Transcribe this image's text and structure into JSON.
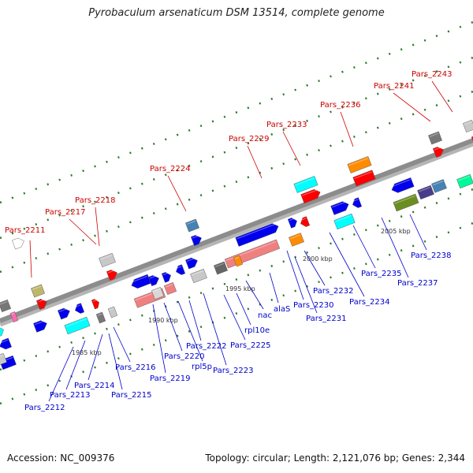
{
  "title": "Pyrobaculum arsenaticum DSM 13514, complete genome",
  "accession": "Accession: NC_009376",
  "summary": "Topology: circular; Length: 2,121,076 bp; Genes: 2,344",
  "colors": {
    "red_label": "#cc0000",
    "blue_label": "#0000cc",
    "backbone": "#8c8c8c",
    "grid_dot": "#2a7a2a",
    "leader": "#555555"
  },
  "kbp_marks": [
    {
      "text": "1985 kbp"
    },
    {
      "text": "1990 kbp"
    },
    {
      "text": "1995 kbp"
    },
    {
      "text": "2000 kbp"
    },
    {
      "text": "2005 kbp"
    }
  ],
  "top_labels": [
    {
      "text": "Pars_2211"
    },
    {
      "text": "Pars_2217"
    },
    {
      "text": "Pars_2218"
    },
    {
      "text": "Pars_2224"
    },
    {
      "text": "Pars_2229"
    },
    {
      "text": "Pars_2233"
    },
    {
      "text": "Pars_2236"
    },
    {
      "text": "Pars_2241"
    },
    {
      "text": "Pars_2243"
    }
  ],
  "bottom_labels": [
    {
      "text": "Pars_2212"
    },
    {
      "text": "Pars_2213"
    },
    {
      "text": "Pars_2214"
    },
    {
      "text": "Pars_2215"
    },
    {
      "text": "Pars_2216"
    },
    {
      "text": "Pars_2219"
    },
    {
      "text": "Pars_2220"
    },
    {
      "text": "rpl5p"
    },
    {
      "text": "Pars_2222"
    },
    {
      "text": "Pars_2223"
    },
    {
      "text": "Pars_2225"
    },
    {
      "text": "rpl10e"
    },
    {
      "text": "nac"
    },
    {
      "text": "alaS"
    },
    {
      "text": "Pars_2230"
    },
    {
      "text": "Pars_2231"
    },
    {
      "text": "Pars_2232"
    },
    {
      "text": "Pars_2234"
    },
    {
      "text": "Pars_2235"
    },
    {
      "text": "Pars_2237"
    },
    {
      "text": "Pars_2238"
    }
  ],
  "genes": [
    {
      "color": "#ffffff"
    },
    {
      "color": "#ff0000"
    },
    {
      "color": "#ff0000"
    },
    {
      "color": "#c8c8c8"
    },
    {
      "color": "#0000ee"
    },
    {
      "color": "#00ffff"
    },
    {
      "color": "#0000ee"
    },
    {
      "color": "#0000ee"
    },
    {
      "color": "#777777"
    },
    {
      "color": "#ff0000"
    },
    {
      "color": "#c8c8c8"
    },
    {
      "color": "#0000ee"
    },
    {
      "color": "#0000ee"
    },
    {
      "color": "#f08080"
    },
    {
      "color": "#d8d8d8"
    },
    {
      "color": "#f08080"
    },
    {
      "color": "#0000ee"
    },
    {
      "color": "#0000ee"
    },
    {
      "color": "#c8c8c8"
    },
    {
      "color": "#0000ee"
    },
    {
      "color": "#4682b4"
    },
    {
      "color": "#0000ee"
    },
    {
      "color": "#666666"
    },
    {
      "color": "#f08080"
    },
    {
      "color": "#ff8c00"
    },
    {
      "color": "#0000ee"
    },
    {
      "color": "#ff8c00"
    },
    {
      "color": "#0000ee"
    },
    {
      "color": "#ff0000"
    },
    {
      "color": "#00ffff"
    },
    {
      "color": "#ff0000"
    },
    {
      "color": "#0000ee"
    },
    {
      "color": "#00ffff"
    },
    {
      "color": "#0000ee"
    },
    {
      "color": "#ff8c00"
    },
    {
      "color": "#ff0000"
    },
    {
      "color": "#0000ee"
    },
    {
      "color": "#6b8e23"
    },
    {
      "color": "#483d8b"
    },
    {
      "color": "#4682b4"
    },
    {
      "color": "#777777"
    },
    {
      "color": "#ff0000"
    },
    {
      "color": "#00fa9a"
    },
    {
      "color": "#c8c8c8"
    },
    {
      "color": "#bdb76b"
    },
    {
      "color": "#ff0000"
    },
    {
      "color": "#777777"
    },
    {
      "color": "#ff69b4"
    },
    {
      "color": "#0000ee"
    },
    {
      "color": "#00ffff"
    },
    {
      "color": "#0000ee"
    },
    {
      "color": "#c8c8c8"
    },
    {
      "color": "#ff0000"
    }
  ]
}
